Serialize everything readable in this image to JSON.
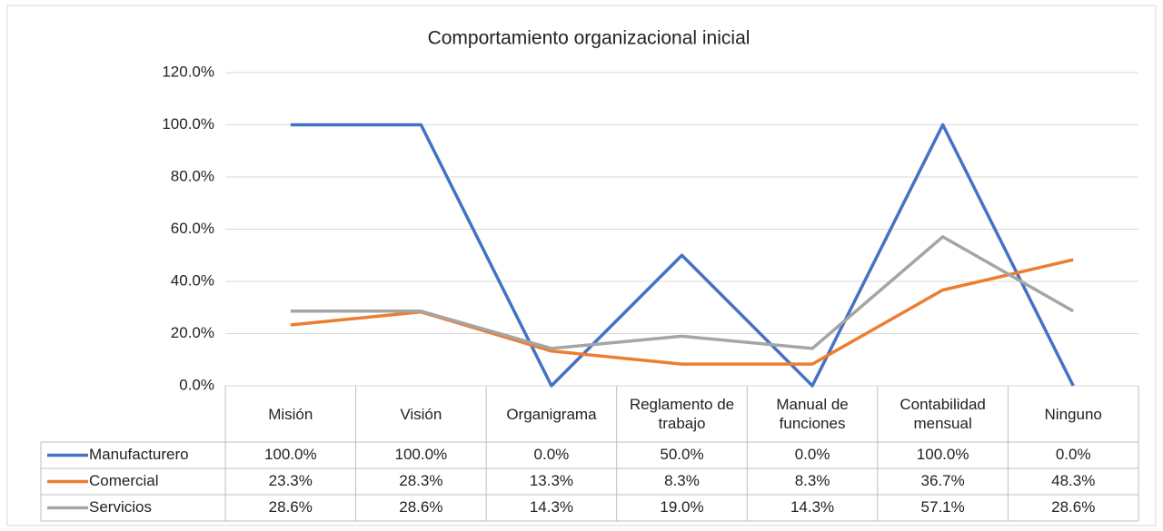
{
  "chart_data": {
    "type": "line",
    "title": "Comportamiento organizacional inicial",
    "categories": [
      "Misión",
      "Visión",
      "Organigrama",
      "Reglamento de trabajo",
      "Manual de funciones",
      "Contabilidad mensual",
      "Ninguno"
    ],
    "series": [
      {
        "name": "Manufacturero",
        "color": "#4472c4",
        "values": [
          100,
          100,
          0,
          50,
          0,
          100,
          0
        ],
        "value_labels": [
          "100.0%",
          "100.0%",
          "0.0%",
          "50.0%",
          "0.0%",
          "100.0%",
          "0.0%"
        ]
      },
      {
        "name": "Comercial",
        "color": "#ed7d31",
        "values": [
          23.3,
          28.3,
          13.3,
          8.3,
          8.3,
          36.7,
          48.3
        ],
        "value_labels": [
          "23.3%",
          "28.3%",
          "13.3%",
          "8.3%",
          "8.3%",
          "36.7%",
          "48.3%"
        ]
      },
      {
        "name": "Servicios",
        "color": "#a5a5a5",
        "values": [
          28.6,
          28.6,
          14.3,
          19.0,
          14.3,
          57.1,
          28.6
        ],
        "value_labels": [
          "28.6%",
          "28.6%",
          "14.3%",
          "19.0%",
          "14.3%",
          "57.1%",
          "28.6%"
        ]
      }
    ],
    "ylim": [
      0,
      120
    ],
    "yticks": [
      {
        "value": 0,
        "label": "0.0%"
      },
      {
        "value": 20,
        "label": "20.0%"
      },
      {
        "value": 40,
        "label": "40.0%"
      },
      {
        "value": 60,
        "label": "60.0%"
      },
      {
        "value": 80,
        "label": "80.0%"
      },
      {
        "value": 100,
        "label": "100.0%"
      },
      {
        "value": 120,
        "label": "120.0%"
      }
    ],
    "grid": true
  }
}
